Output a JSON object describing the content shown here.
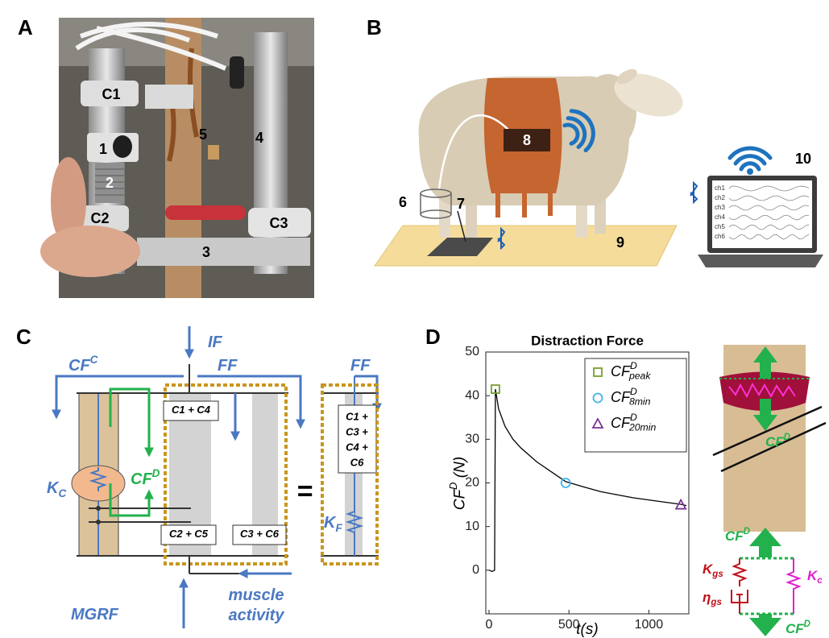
{
  "panel_labels": [
    "A",
    "B",
    "C",
    "D"
  ],
  "photo": {
    "labels": [
      "C1",
      "1",
      "5",
      "4",
      "2",
      "C2",
      "C3",
      "3"
    ]
  },
  "sheep": {
    "labels": [
      "6",
      "7",
      "8",
      "9",
      "10"
    ],
    "channels": [
      "ch1",
      "ch2",
      "ch3",
      "ch4",
      "ch5",
      "ch6"
    ]
  },
  "model": {
    "labels": [
      {
        "text": "IF"
      },
      {
        "text": "CF",
        "sup": "C"
      },
      {
        "text": "FF"
      },
      {
        "text": "FF"
      },
      {
        "text": "C1 + C4"
      },
      {
        "text": "CF",
        "sup": "D"
      },
      {
        "text": "K",
        "sub": "C"
      },
      {
        "text": "="
      },
      {
        "text": "K",
        "sub": "F"
      },
      {
        "text": "C2 + C5"
      },
      {
        "text": "C3 + C6"
      },
      {
        "text": "MGRF"
      },
      {
        "text": "muscle"
      },
      {
        "text": "activity"
      }
    ],
    "stack_box": [
      "C1 +",
      "C3 +",
      "C4 +",
      "C6"
    ]
  },
  "chart_data": {
    "type": "line",
    "title": "Distraction Force",
    "xlabel": {
      "text": "t(s)"
    },
    "ylabel": {
      "text": "CF",
      "sup": "D",
      "after": " (N)"
    },
    "xlim": [
      -20,
      1250
    ],
    "ylim": [
      -10,
      50
    ],
    "xticks": [
      0,
      500,
      1000
    ],
    "yticks": [
      0,
      10,
      20,
      30,
      40,
      50
    ],
    "series": [
      {
        "color": "#000000",
        "x": [
          0,
          20,
          35,
          40,
          60,
          100,
          150,
          200,
          300,
          400,
          480,
          600,
          700,
          800,
          900,
          1000,
          1100,
          1200,
          1235
        ],
        "values": [
          0,
          -0.3,
          0,
          41.5,
          37,
          33,
          30,
          28,
          24.8,
          22.3,
          20.3,
          19,
          18,
          17.3,
          16.6,
          16.1,
          15.6,
          15.1,
          14.8
        ]
      },
      {
        "name": "CF",
        "name_sup": "D",
        "name_sub": "peak",
        "color": "#77a02a",
        "marker": "square",
        "x": [
          40
        ],
        "values": [
          41.5
        ]
      },
      {
        "name": "CF",
        "name_sup": "D",
        "name_sub": "8min",
        "color": "#3fb6e6",
        "marker": "circle",
        "x": [
          480
        ],
        "values": [
          20
        ]
      },
      {
        "name": "CF",
        "name_sup": "D",
        "name_sub": "20min",
        "color": "#7b3294",
        "marker": "triangle",
        "x": [
          1200
        ],
        "values": [
          15
        ]
      }
    ]
  },
  "bone": {
    "labels": [
      {
        "text": "CF",
        "sup": "D"
      },
      {
        "text": "CF",
        "sup": "D"
      },
      {
        "text": "K",
        "sub": "gs"
      },
      {
        "text": "η",
        "sub": "gs"
      },
      {
        "text": "K",
        "sub": "c"
      },
      {
        "text": "CF",
        "sup": "D"
      }
    ]
  }
}
